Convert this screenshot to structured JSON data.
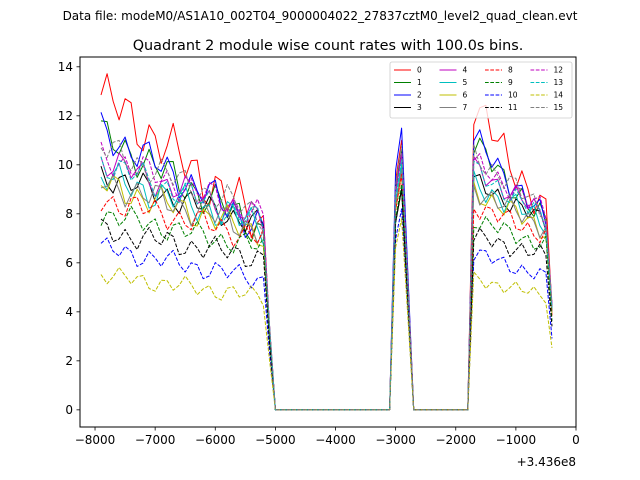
{
  "chart_data": {
    "type": "line",
    "suptitle": "Data file: modeM0/AS1A10_002T04_9000004022_27837cztM0_level2_quad_clean.evt",
    "title": "Quadrant 2 module wise count rates with 100.0s bins.",
    "xlabel": "",
    "ylabel": "",
    "offset_label": "+3.436e8",
    "xlim": [
      -8250,
      0
    ],
    "ylim": [
      -0.7,
      14.4
    ],
    "x_ticks": [
      -8000,
      -7000,
      -6000,
      -5000,
      -4000,
      -3000,
      -2000,
      -1000,
      0
    ],
    "x_tick_labels": [
      "−8000",
      "−7000",
      "−6000",
      "−5000",
      "−4000",
      "−3000",
      "−2000",
      "−1000",
      "0"
    ],
    "y_ticks": [
      0,
      2,
      4,
      6,
      8,
      10,
      12,
      14
    ],
    "y_tick_labels": [
      "0",
      "2",
      "4",
      "6",
      "8",
      "10",
      "12",
      "14"
    ],
    "legend_position": "top-right",
    "x": [
      -7900,
      -7800,
      -7700,
      -7600,
      -7500,
      -7400,
      -7300,
      -7200,
      -7100,
      -7000,
      -6900,
      -6800,
      -6700,
      -6600,
      -6500,
      -6400,
      -6300,
      -6200,
      -6100,
      -6000,
      -5900,
      -5800,
      -5700,
      -5600,
      -5500,
      -5400,
      -5300,
      -5200,
      -5100,
      -5000,
      -4900,
      -4800,
      -4700,
      -4600,
      -4500,
      -4400,
      -4300,
      -4200,
      -4100,
      -4000,
      -3900,
      -3800,
      -3700,
      -3600,
      -3500,
      -3400,
      -3300,
      -3200,
      -3100,
      -3000,
      -2900,
      -2800,
      -2700,
      -2600,
      -2500,
      -2400,
      -2300,
      -2200,
      -2100,
      -2000,
      -1900,
      -1800,
      -1700,
      -1600,
      -1500,
      -1400,
      -1300,
      -1200,
      -1100,
      -1000,
      -900,
      -800,
      -700,
      -600,
      -500,
      -400
    ],
    "series": [
      {
        "name": "0",
        "color": "#ff0000",
        "dash": "solid",
        "level": 12.85,
        "end": 7.5,
        "peak": 11.0,
        "amp": 0.85,
        "phase": 0.0
      },
      {
        "name": "1",
        "color": "#008000",
        "dash": "solid",
        "level": 11.2,
        "end": 7.3,
        "peak": 10.6,
        "amp": 0.6,
        "phase": 0.6
      },
      {
        "name": "2",
        "color": "#0000ff",
        "dash": "solid",
        "level": 11.4,
        "end": 7.4,
        "peak": 11.5,
        "amp": 0.6,
        "phase": 1.2
      },
      {
        "name": "3",
        "color": "#000000",
        "dash": "solid",
        "level": 9.6,
        "end": 7.5,
        "peak": 9.0,
        "amp": 0.45,
        "phase": 1.8
      },
      {
        "name": "4",
        "color": "#bf00bf",
        "dash": "solid",
        "level": 10.2,
        "end": 7.7,
        "peak": 10.4,
        "amp": 0.5,
        "phase": 2.4
      },
      {
        "name": "5",
        "color": "#00bfbf",
        "dash": "solid",
        "level": 9.5,
        "end": 7.5,
        "peak": 10.0,
        "amp": 0.55,
        "phase": 3.0
      },
      {
        "name": "6",
        "color": "#bfbf00",
        "dash": "solid",
        "level": 9.2,
        "end": 7.2,
        "peak": 9.6,
        "amp": 0.5,
        "phase": 3.6
      },
      {
        "name": "7",
        "color": "#808080",
        "dash": "solid",
        "level": 9.3,
        "end": 7.3,
        "peak": 9.8,
        "amp": 0.5,
        "phase": 4.2
      },
      {
        "name": "8",
        "color": "#ff0000",
        "dash": "dashed",
        "level": 8.6,
        "end": 7.0,
        "peak": 9.6,
        "amp": 0.45,
        "phase": 4.8
      },
      {
        "name": "9",
        "color": "#008000",
        "dash": "dashed",
        "level": 8.0,
        "end": 6.6,
        "peak": 9.2,
        "amp": 0.4,
        "phase": 5.4
      },
      {
        "name": "10",
        "color": "#0000ff",
        "dash": "dashed",
        "level": 6.6,
        "end": 5.3,
        "peak": 8.2,
        "amp": 0.35,
        "phase": 0.3
      },
      {
        "name": "11",
        "color": "#000000",
        "dash": "dashed",
        "level": 7.3,
        "end": 6.2,
        "peak": 9.0,
        "amp": 0.4,
        "phase": 0.9
      },
      {
        "name": "12",
        "color": "#bf00bf",
        "dash": "dashed",
        "level": 10.4,
        "end": 7.9,
        "peak": 10.5,
        "amp": 0.5,
        "phase": 1.5
      },
      {
        "name": "13",
        "color": "#00bfbf",
        "dash": "dashed",
        "level": 10.1,
        "end": 7.6,
        "peak": 10.2,
        "amp": 0.5,
        "phase": 2.1
      },
      {
        "name": "14",
        "color": "#bfbf00",
        "dash": "dashed",
        "level": 5.5,
        "end": 4.6,
        "peak": 7.8,
        "amp": 0.3,
        "phase": 2.7
      },
      {
        "name": "15",
        "color": "#808080",
        "dash": "dashed",
        "level": 10.7,
        "end": 7.9,
        "peak": 10.8,
        "amp": 0.5,
        "phase": 3.3
      }
    ]
  }
}
